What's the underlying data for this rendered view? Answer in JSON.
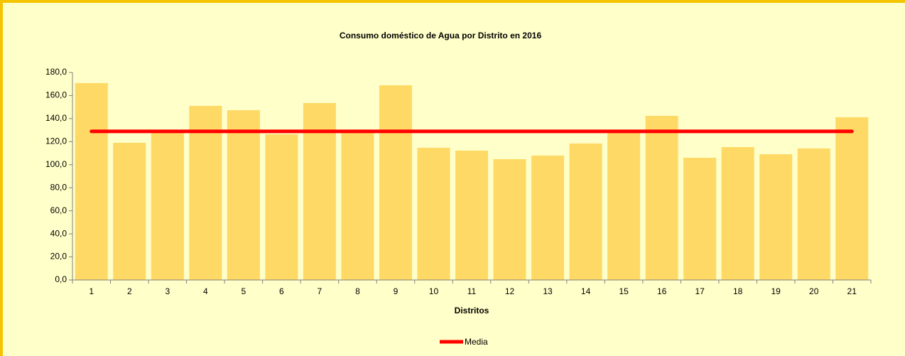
{
  "chart_data": {
    "type": "bar",
    "title": "Consumo doméstico de Agua por Distrito en 2016",
    "x_label": "Distritos",
    "categories": [
      "1",
      "2",
      "3",
      "4",
      "5",
      "6",
      "7",
      "8",
      "9",
      "10",
      "11",
      "12",
      "13",
      "14",
      "15",
      "16",
      "17",
      "18",
      "19",
      "20",
      "21"
    ],
    "series": [
      {
        "type": "bar",
        "color": "#ffd966",
        "values": [
          170.8,
          119.0,
          127.6,
          151.0,
          147.3,
          126.4,
          153.5,
          128.2,
          168.9,
          114.7,
          112.2,
          104.8,
          107.9,
          118.4,
          128.5,
          142.4,
          106.0,
          115.3,
          109.1,
          114.1,
          141.2
        ]
      },
      {
        "type": "line",
        "name": "Media",
        "color": "#ff0000",
        "values": [
          128.9,
          128.9,
          128.9,
          128.9,
          128.9,
          128.9,
          128.9,
          128.9,
          128.9,
          128.9,
          128.9,
          128.9,
          128.9,
          128.9,
          128.9,
          128.9,
          128.9,
          128.9,
          128.9,
          128.9,
          128.9
        ]
      }
    ],
    "ylim": [
      0,
      180
    ],
    "yticks": [
      {
        "value": 0,
        "label": "0,0"
      },
      {
        "value": 20,
        "label": "20,0"
      },
      {
        "value": 40,
        "label": "40,0"
      },
      {
        "value": 60,
        "label": "60,0"
      },
      {
        "value": 80,
        "label": "80,0"
      },
      {
        "value": 100,
        "label": "100,0"
      },
      {
        "value": 120,
        "label": "120,0"
      },
      {
        "value": 140,
        "label": "140,0"
      },
      {
        "value": 160,
        "label": "160,0"
      },
      {
        "value": 180,
        "label": "180,0"
      }
    ],
    "grid": false,
    "legend": "bottom"
  }
}
